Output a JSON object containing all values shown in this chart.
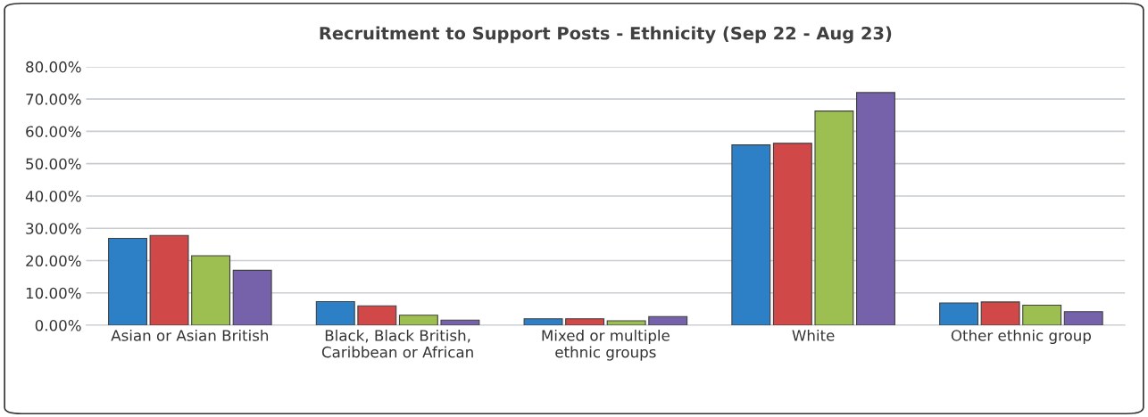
{
  "chart_data": {
    "type": "bar",
    "title": "Recruitment to Support Posts - Ethnicity (Sep 22 - Aug 23)",
    "categories": [
      "Asian or Asian British",
      "Black, Black British,\nCaribbean or African",
      "Mixed or multiple\nethnic groups",
      "White",
      "Other ethnic group"
    ],
    "series": [
      {
        "color": "#2e80c6",
        "values": [
          26.9,
          7.3,
          2.0,
          55.8,
          6.9
        ]
      },
      {
        "color": "#d04848",
        "values": [
          27.8,
          6.0,
          2.0,
          56.3,
          7.2
        ]
      },
      {
        "color": "#9dbf52",
        "values": [
          21.5,
          3.1,
          1.4,
          66.3,
          6.2
        ]
      },
      {
        "color": "#7562aa",
        "values": [
          17.0,
          1.6,
          2.7,
          72.0,
          4.2
        ]
      }
    ],
    "ylim": [
      0,
      80
    ],
    "yticks": [
      {
        "value": 0,
        "label": "0.00%"
      },
      {
        "value": 10,
        "label": "10.00%"
      },
      {
        "value": 20,
        "label": "20.00%"
      },
      {
        "value": 30,
        "label": "30.00%"
      },
      {
        "value": 40,
        "label": "40.00%"
      },
      {
        "value": 50,
        "label": "50.00%"
      },
      {
        "value": 60,
        "label": "60.00%"
      },
      {
        "value": 70,
        "label": "70.00%"
      },
      {
        "value": 80,
        "label": "80.00%"
      }
    ],
    "grid": "y"
  }
}
